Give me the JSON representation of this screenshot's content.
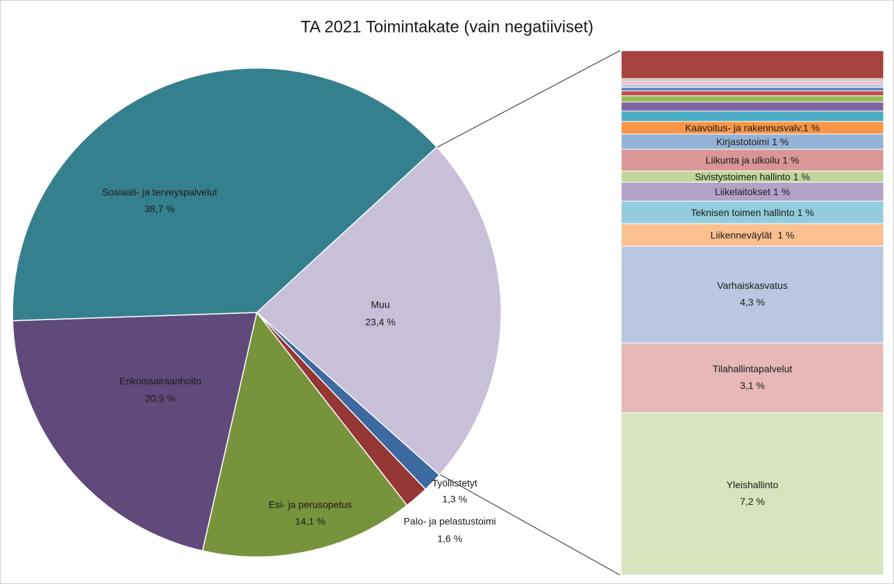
{
  "chart_data": [
    {
      "type": "pie",
      "title": "TA 2021 Toimintakate (vain negatiiviset)",
      "categories": [
        "Muu",
        "Työllistetyt",
        "Palo- ja pelastustoimi",
        "Esi- ja perusopetus",
        "Erikoissairaanhoito",
        "Sosiaali- ja terveyspalvelut"
      ],
      "values": [
        23.4,
        1.3,
        1.6,
        14.1,
        20.9,
        38.7
      ],
      "value_labels": [
        "23,4 %",
        "1,3 %",
        "1,6 %",
        "14,1 %",
        "20,9 %",
        "38,7 %"
      ],
      "colors": [
        "#c8bfd8",
        "#3c6aa0",
        "#953735",
        "#77933c",
        "#604a7b",
        "#35808f"
      ]
    },
    {
      "type": "bar",
      "categories": [
        "Yleishallinto",
        "Tilahallintapalvelut",
        "Varhaiskasvatus",
        "Liikenneväylät",
        "Teknisen toimen hallinto",
        "Liikelaitokset",
        "Sivistystoimen hallinto",
        "Liikunta ja ulkoilu",
        "Kirjastotoimi",
        "Kaavoitus- ja rakennusvalv.",
        null,
        null,
        null,
        null,
        null,
        null,
        null,
        null,
        null
      ],
      "values": [
        7.2,
        3.1,
        4.3,
        1,
        1,
        0.84,
        0.5,
        0.96,
        0.68,
        0.56,
        0.46,
        0.4,
        0.28,
        0.22,
        0.15,
        0.15,
        0.12,
        0.12,
        1.24
      ],
      "value_labels": [
        "7,2 %",
        "3,1 %",
        "4,3 %",
        "1 %",
        "1 %",
        "1 %",
        "1 %",
        "1 %",
        "1 %",
        "1 %",
        null,
        null,
        null,
        null,
        null,
        null,
        null,
        null,
        null
      ],
      "colors": [
        "#d7e4bd",
        "#e6b9b8",
        "#b9c7e0",
        "#fac090",
        "#93cddd",
        "#b3a2c7",
        "#c3d69b",
        "#d99694",
        "#95b3d7",
        "#f79646",
        "#4bacc6",
        "#8064a2",
        "#9bbb59",
        "#c0504d",
        "#4f81bd",
        "#ccc1da",
        "#e6b9b8",
        "#bfbfbf",
        "#a5433e"
      ]
    }
  ]
}
